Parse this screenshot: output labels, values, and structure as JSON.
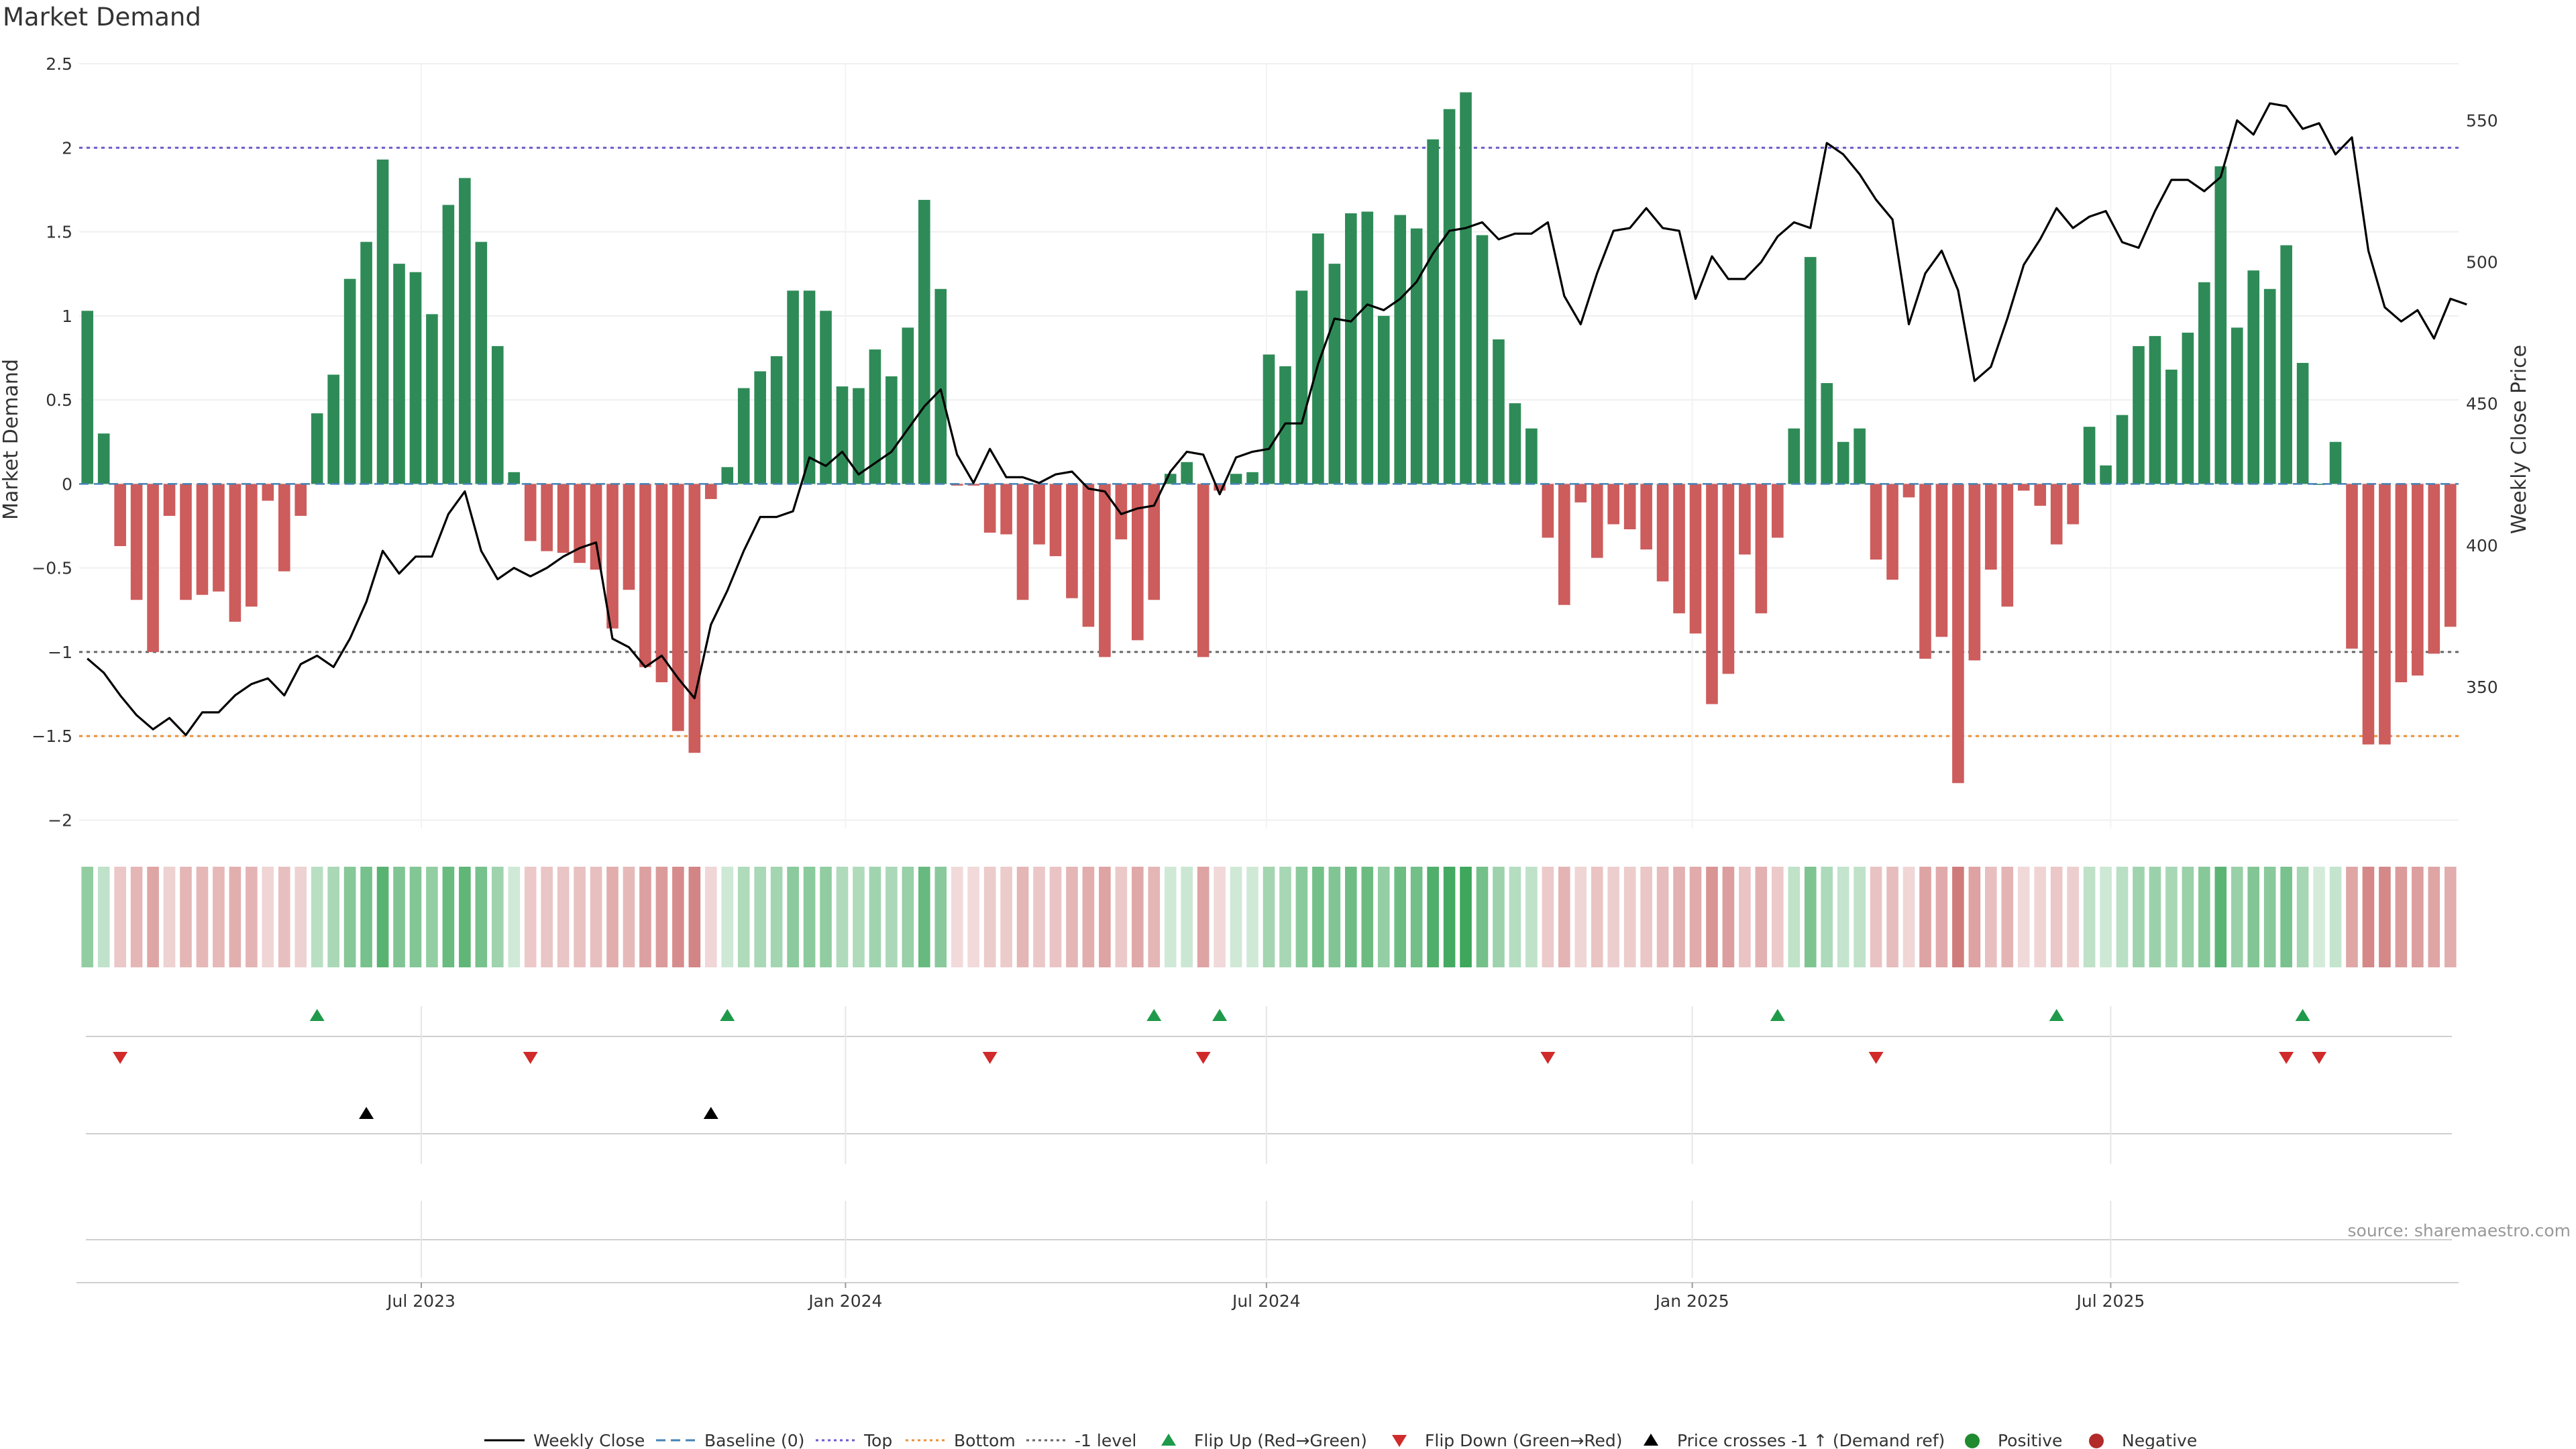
{
  "title": "Market Demand",
  "source": "source: sharemaestro.com",
  "colors": {
    "positive": "#2e8b57",
    "negative": "#cd5c5c",
    "top_line": "#6a5acd",
    "bottom_line": "#e8913a",
    "minus1_line": "#666666",
    "baseline": "#4682b4",
    "flip_up": "#1f9a4a",
    "flip_down": "#d02a2a",
    "price_cross": "#000000"
  },
  "chart_data": {
    "type": "bar",
    "title": "Market Demand",
    "ylabel": "Market Demand",
    "y2label": "Weekly Close Price",
    "ylim": [
      -2.05,
      2.5
    ],
    "y2lim": [
      300,
      570
    ],
    "yticks": [
      "2.5",
      "2",
      "1.5",
      "1",
      "0.5",
      "0",
      "−0.5",
      "−1",
      "−1.5",
      "−2"
    ],
    "ytick_values": [
      2.5,
      2,
      1.5,
      1,
      0.5,
      0,
      -0.5,
      -1,
      -1.5,
      -2
    ],
    "y2ticks": [
      "550",
      "500",
      "450",
      "400",
      "350"
    ],
    "y2tick_values": [
      550,
      500,
      450,
      400,
      350
    ],
    "xticks": [
      "Jul 2023",
      "Jan 2024",
      "Jul 2024",
      "Jan 2025",
      "Jul 2025"
    ],
    "xtick_positions": [
      20.85,
      46.7,
      72.35,
      98.3,
      123.8
    ],
    "reference_lines": [
      {
        "name": "Top",
        "value": 2
      },
      {
        "name": "-1 level",
        "value": -1
      },
      {
        "name": "Bottom",
        "value": -1.5
      }
    ],
    "demand": [
      1.03,
      0.3,
      -0.37,
      -0.69,
      -1,
      -0.19,
      -0.69,
      -0.66,
      -0.64,
      -0.82,
      -0.73,
      -0.1,
      -0.52,
      -0.19,
      0.42,
      0.65,
      1.22,
      1.44,
      1.93,
      1.31,
      1.26,
      1.01,
      1.66,
      1.82,
      1.44,
      0.82,
      0.07,
      -0.34,
      -0.4,
      -0.41,
      -0.47,
      -0.51,
      -0.86,
      -0.63,
      -1.09,
      -1.18,
      -1.47,
      -1.6,
      -0.09,
      0.1,
      0.57,
      0.67,
      0.76,
      1.15,
      1.15,
      1.03,
      0.58,
      0.57,
      0.8,
      0.64,
      0.93,
      1.69,
      1.16,
      -0.01,
      -0.01,
      -0.29,
      -0.3,
      -0.69,
      -0.36,
      -0.43,
      -0.68,
      -0.85,
      -1.03,
      -0.33,
      -0.93,
      -0.69,
      0.06,
      0.13,
      -1.03,
      -0.04,
      0.06,
      0.07,
      0.77,
      0.7,
      1.15,
      1.49,
      1.31,
      1.61,
      1.62,
      1.0,
      1.6,
      1.52,
      2.05,
      2.23,
      2.33,
      1.48,
      0.86,
      0.48,
      0.33,
      -0.32,
      -0.72,
      -0.11,
      -0.44,
      -0.24,
      -0.27,
      -0.39,
      -0.58,
      -0.77,
      -0.89,
      -1.31,
      -1.13,
      -0.42,
      -0.77,
      -0.32,
      0.33,
      1.35,
      0.6,
      0.25,
      0.33,
      -0.45,
      -0.57,
      -0.08,
      -1.04,
      -0.91,
      -1.78,
      -1.05,
      -0.51,
      -0.73,
      -0.04,
      -0.13,
      -0.36,
      -0.24,
      0.34,
      0.11,
      0.41,
      0.82,
      0.88,
      0.68,
      0.9,
      1.2,
      1.89,
      0.93,
      1.27,
      1.16,
      1.42,
      0.72,
      0.0,
      0.25,
      -0.98,
      -1.55,
      -1.55,
      -1.18,
      -1.14,
      -1.01,
      -0.85
    ],
    "close": [
      360,
      355,
      347,
      340,
      335,
      339,
      333,
      341,
      341,
      347,
      351,
      353,
      347,
      358,
      361,
      357,
      367,
      380,
      398,
      390,
      396,
      396,
      411,
      419,
      398,
      388,
      392,
      389,
      392,
      396,
      399,
      401,
      367,
      364,
      357,
      361,
      353,
      346,
      372,
      384,
      398,
      410,
      410,
      412,
      431,
      428,
      433,
      425,
      429,
      433,
      441,
      449,
      455,
      432,
      422,
      434,
      424,
      424,
      422,
      425,
      426,
      420,
      419,
      411,
      413,
      414,
      426,
      433,
      432,
      418,
      431,
      433,
      434,
      443,
      443,
      464,
      480,
      479,
      485,
      483,
      487,
      493,
      503,
      511,
      512,
      514,
      508,
      510,
      510,
      514,
      488,
      478,
      496,
      511,
      512,
      519,
      512,
      511,
      487,
      502,
      494,
      494,
      500,
      509,
      514,
      512,
      542,
      538,
      531,
      522,
      515,
      478,
      496,
      504,
      490,
      458,
      463,
      480,
      499,
      508,
      519,
      512,
      516,
      518,
      507,
      505,
      518,
      529,
      529,
      525,
      530,
      550,
      545,
      556,
      555,
      547,
      549,
      538,
      544,
      504,
      484,
      479,
      483,
      473,
      487,
      485
    ],
    "flip_up_indices": [
      14,
      39,
      65,
      69,
      103,
      120,
      135
    ],
    "flip_down_indices": [
      2,
      27,
      55,
      68,
      89,
      109,
      134,
      136
    ],
    "price_cross_indices": [
      17,
      38
    ]
  },
  "legend": {
    "weekly_close": "Weekly Close",
    "baseline": "Baseline (0)",
    "top": "Top",
    "bottom": "Bottom",
    "minus1": "-1 level",
    "flip_up": "Flip Up (Red→Green)",
    "flip_down": "Flip Down (Green→Red)",
    "price_cross": "Price crosses -1 ↑ (Demand ref)",
    "positive": "Positive",
    "negative": "Negative"
  }
}
